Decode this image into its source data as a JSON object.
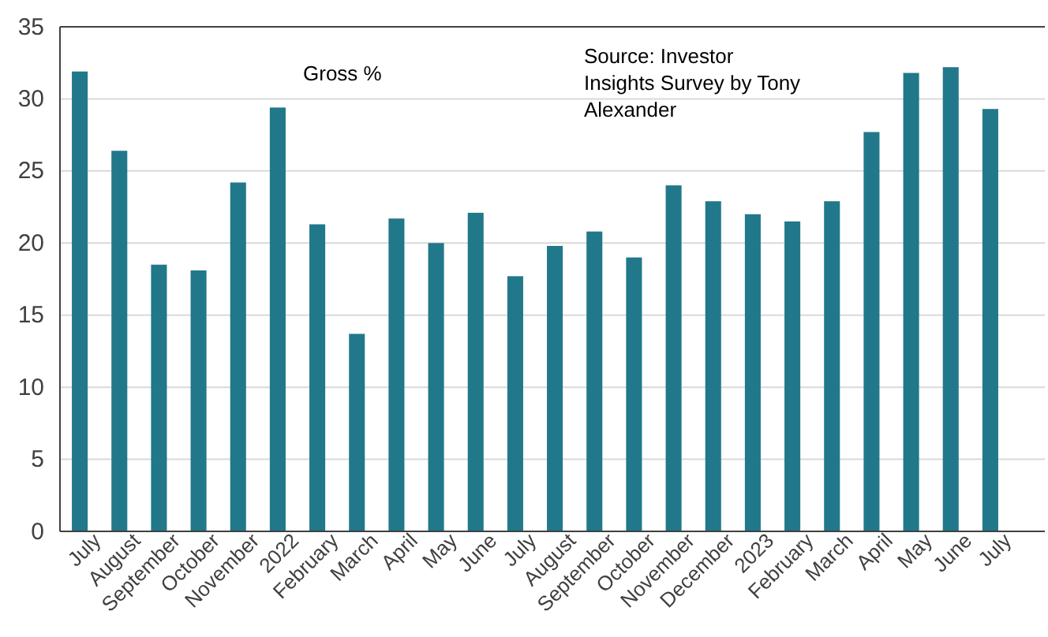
{
  "chart_data": {
    "type": "bar",
    "categories": [
      "July",
      "August",
      "September",
      "October",
      "November",
      "2022",
      "February",
      "March",
      "April",
      "May",
      "June",
      "July",
      "August",
      "September",
      "October",
      "November",
      "December",
      "2023",
      "February",
      "March",
      "April",
      "May",
      "June",
      "July"
    ],
    "values": [
      31.9,
      26.4,
      18.5,
      18.1,
      24.2,
      29.4,
      21.3,
      13.7,
      21.7,
      20.0,
      22.1,
      17.7,
      19.8,
      20.8,
      19.0,
      24.0,
      22.9,
      22.0,
      21.5,
      22.9,
      27.7,
      31.8,
      32.2,
      29.3
    ],
    "color": "#21788a",
    "ylim": [
      0,
      35
    ],
    "yticks": [
      0,
      5,
      10,
      15,
      20,
      25,
      30,
      35
    ],
    "grid": "y",
    "annotations": [
      "Gross %",
      "Source: Investor Insights Survey by Tony Alexander"
    ]
  }
}
